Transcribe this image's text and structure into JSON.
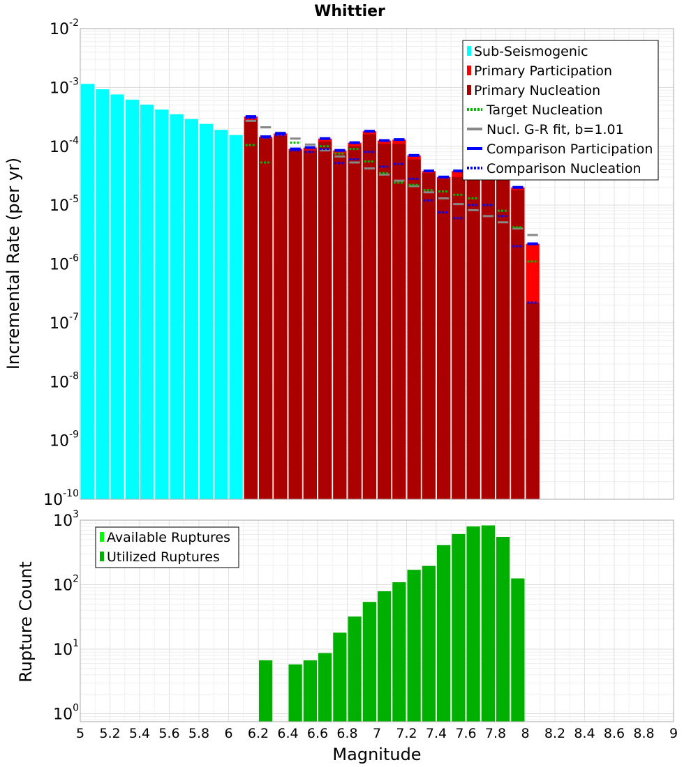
{
  "chart_data": [
    {
      "type": "bar",
      "title": "Whittier",
      "ylabel": "Incremental Rate (per yr)",
      "yscale": "log",
      "ylim": [
        1e-10,
        0.01
      ],
      "xlim": [
        5,
        9
      ],
      "bin_width": 0.1,
      "y_ticks": [
        {
          "base": "10",
          "exp": "-10",
          "value": 1e-10
        },
        {
          "base": "10",
          "exp": "-9",
          "value": 1e-09
        },
        {
          "base": "10",
          "exp": "-8",
          "value": 1e-08
        },
        {
          "base": "10",
          "exp": "-7",
          "value": 1e-07
        },
        {
          "base": "10",
          "exp": "-6",
          "value": 1e-06
        },
        {
          "base": "10",
          "exp": "-5",
          "value": 1e-05
        },
        {
          "base": "10",
          "exp": "-4",
          "value": 0.0001
        },
        {
          "base": "10",
          "exp": "-3",
          "value": 0.001
        },
        {
          "base": "10",
          "exp": "-2",
          "value": 0.01
        }
      ],
      "legend": [
        {
          "label": "Sub-Seismogenic",
          "color": "#00ffff",
          "style": "bar"
        },
        {
          "label": "Primary Participation",
          "color": "#ff0000",
          "style": "bar"
        },
        {
          "label": "Primary Nucleation",
          "color": "#aa0000",
          "style": "bar"
        },
        {
          "label": "Target Nucleation",
          "color": "#00bb00",
          "style": "dotted"
        },
        {
          "label": "Nucl. G-R fit, b=1.01",
          "color": "#888888",
          "style": "solid"
        },
        {
          "label": "Comparison Participation",
          "color": "#0000ff",
          "style": "solid"
        },
        {
          "label": "Comparison Nucleation",
          "color": "#0000ff",
          "style": "dotted"
        }
      ],
      "series": [
        {
          "name": "Sub-Seismogenic",
          "color": "#00ffff",
          "x": [
            5.05,
            5.15,
            5.25,
            5.35,
            5.45,
            5.55,
            5.65,
            5.75,
            5.85,
            5.95,
            6.05
          ],
          "values": [
            0.00115,
            0.00093,
            0.00076,
            0.00062,
            0.00051,
            0.00042,
            0.00035,
            0.00029,
            0.00024,
            0.00019,
            0.000155
          ]
        },
        {
          "name": "Primary Participation",
          "color": "#ff0000",
          "x": [
            6.15,
            6.25,
            6.35,
            6.45,
            6.55,
            6.65,
            6.75,
            6.85,
            6.95,
            7.05,
            7.15,
            7.25,
            7.35,
            7.45,
            7.55,
            7.65,
            7.75,
            7.85,
            7.95,
            8.05
          ],
          "values": [
            0.00032,
            0.000145,
            0.000165,
            9e-05,
            9.5e-05,
            0.000135,
            8.5e-05,
            0.000115,
            0.00018,
            0.000125,
            0.00013,
            7e-05,
            3.8e-05,
            3e-05,
            3.8e-05,
            7e-05,
            7e-05,
            5e-05,
            2e-05,
            2.2e-06
          ]
        },
        {
          "name": "Primary Nucleation",
          "color": "#aa0000",
          "x": [
            6.15,
            6.25,
            6.35,
            6.45,
            6.55,
            6.65,
            6.75,
            6.85,
            6.95,
            7.05,
            7.15,
            7.25,
            7.35,
            7.45,
            7.55,
            7.65,
            7.75,
            7.85,
            7.95,
            8.05
          ],
          "values": [
            0.00028,
            0.000135,
            0.00015,
            8.5e-05,
            8.5e-05,
            0.00012,
            7.5e-05,
            0.0001,
            0.00016,
            0.00011,
            0.00011,
            6e-05,
            3.5e-05,
            2.8e-05,
            3e-05,
            3.5e-05,
            3.2e-05,
            4e-05,
            1.8e-05,
            2.2e-07
          ]
        },
        {
          "name": "Target Nucleation",
          "color": "#00bb00",
          "x": [
            6.15,
            6.25,
            6.35,
            6.45,
            6.55,
            6.65,
            6.75,
            6.85,
            6.95,
            7.05,
            7.15,
            7.25,
            7.35,
            7.45,
            7.55,
            7.65,
            7.75,
            7.85,
            7.95,
            8.05
          ],
          "values": [
            0.000105,
            5.3e-05,
            0.00016,
            0.000115,
            9.5e-05,
            0.0001,
            7.5e-05,
            9e-05,
            5.5e-05,
            3.5e-05,
            2.4e-05,
            2.2e-05,
            1.8e-05,
            1.7e-05,
            1.5e-05,
            1.3e-05,
            1e-05,
            8e-06,
            4.2e-06,
            1.1e-06
          ]
        },
        {
          "name": "Nucl. G-R fit, b=1.01",
          "color": "#888888",
          "x": [
            6.15,
            6.25,
            6.35,
            6.45,
            6.55,
            6.65,
            6.75,
            6.85,
            6.95,
            7.05,
            7.15,
            7.25,
            7.35,
            7.45,
            7.55,
            7.65,
            7.75,
            7.85,
            7.95,
            8.05
          ],
          "values": [
            0.00027,
            0.00021,
            0.00017,
            0.000135,
            0.000107,
            8.5e-05,
            6.7e-05,
            5.3e-05,
            4.2e-05,
            3.3e-05,
            2.6e-05,
            2.1e-05,
            1.65e-05,
            1.3e-05,
            1.04e-05,
            8.2e-06,
            6.5e-06,
            5.1e-06,
            4e-06,
            3.1e-06
          ]
        },
        {
          "name": "Comparison Participation",
          "color": "#0000ff",
          "x": [
            6.15,
            6.25,
            6.35,
            6.45,
            6.55,
            6.65,
            6.75,
            6.85,
            6.95,
            7.05,
            7.15,
            7.25,
            7.35,
            7.45,
            7.55,
            7.65,
            7.75,
            7.85,
            7.95,
            8.05
          ],
          "values": [
            0.00032,
            0.000145,
            0.000165,
            9e-05,
            9.5e-05,
            0.000135,
            8.5e-05,
            0.000115,
            0.00018,
            0.000125,
            0.00013,
            7e-05,
            3.8e-05,
            3e-05,
            3.8e-05,
            7e-05,
            7e-05,
            5e-05,
            2e-05,
            2.2e-06
          ]
        },
        {
          "name": "Comparison Nucleation",
          "color": "#0000ff",
          "x": [
            6.15,
            6.25,
            6.35,
            6.45,
            6.55,
            6.65,
            6.75,
            6.85,
            6.95,
            7.05,
            7.15,
            7.25,
            7.35,
            7.45,
            7.55,
            7.65,
            7.75,
            7.85,
            7.95,
            8.05
          ],
          "values": [
            0.0003,
            0.00014,
            0.000155,
            8.5e-05,
            8e-05,
            9e-05,
            5.2e-05,
            6e-05,
            8e-05,
            4.5e-05,
            5e-05,
            2.8e-05,
            1.2e-05,
            7.5e-06,
            6e-06,
            1e-05,
            1e-05,
            6.5e-06,
            2e-06,
            2.2e-07
          ]
        }
      ]
    },
    {
      "type": "bar",
      "xlabel": "Magnitude",
      "ylabel": "Rupture Count",
      "yscale": "log",
      "ylim": [
        0.75,
        1000
      ],
      "xlim": [
        5,
        9
      ],
      "bin_width": 0.1,
      "y_ticks": [
        {
          "base": "10",
          "exp": "0",
          "value": 1
        },
        {
          "base": "10",
          "exp": "1",
          "value": 10
        },
        {
          "base": "10",
          "exp": "2",
          "value": 100
        },
        {
          "base": "10",
          "exp": "3",
          "value": 1000
        }
      ],
      "x_ticks": [
        "5",
        "5.2",
        "5.4",
        "5.6",
        "5.8",
        "6",
        "6.2",
        "6.4",
        "6.6",
        "6.8",
        "7",
        "7.2",
        "7.4",
        "7.6",
        "7.8",
        "8",
        "8.2",
        "8.4",
        "8.6",
        "8.8",
        "9"
      ],
      "legend": [
        {
          "label": "Available Ruptures",
          "color": "#00ff00",
          "style": "bar"
        },
        {
          "label": "Utilized Ruptures",
          "color": "#00b000",
          "style": "bar"
        }
      ],
      "series": [
        {
          "name": "Available Ruptures",
          "color": "#00ff00",
          "x": [
            6.25,
            6.45,
            6.55,
            6.65,
            6.75,
            6.85,
            6.95,
            7.05,
            7.15,
            7.25,
            7.35,
            7.45,
            7.55,
            7.65,
            7.75,
            7.85,
            7.95
          ],
          "values": [
            6.7,
            5.8,
            6.7,
            8.7,
            18,
            32,
            54,
            79,
            109,
            170,
            195,
            410,
            610,
            800,
            830,
            550,
            125
          ]
        },
        {
          "name": "Utilized Ruptures",
          "color": "#00b000",
          "x": [
            6.25,
            6.45,
            6.55,
            6.65,
            6.75,
            6.85,
            6.95,
            7.05,
            7.15,
            7.25,
            7.35,
            7.45,
            7.55,
            7.65,
            7.75,
            7.85,
            7.95
          ],
          "values": [
            6.7,
            5.8,
            6.7,
            8.7,
            18,
            32,
            54,
            79,
            109,
            170,
            195,
            410,
            610,
            800,
            830,
            550,
            125
          ]
        }
      ]
    }
  ]
}
